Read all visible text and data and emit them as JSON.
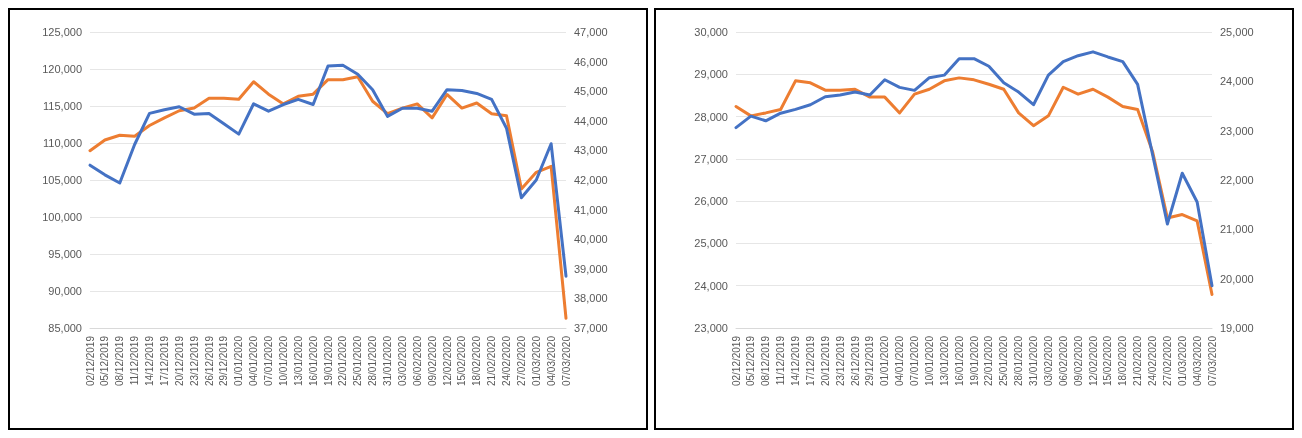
{
  "chart_data": [
    {
      "type": "line",
      "categories": [
        "02/12/2019",
        "05/12/2019",
        "08/12/2019",
        "11/12/2019",
        "14/12/2019",
        "17/12/2019",
        "20/12/2019",
        "23/12/2019",
        "26/12/2019",
        "29/12/2019",
        "01/01/2020",
        "04/01/2020",
        "07/01/2020",
        "10/01/2020",
        "13/01/2020",
        "16/01/2020",
        "19/01/2020",
        "22/01/2020",
        "25/01/2020",
        "28/01/2020",
        "31/01/2020",
        "03/02/2020",
        "06/02/2020",
        "09/02/2020",
        "12/02/2020",
        "15/02/2020",
        "18/02/2020",
        "21/02/2020",
        "24/02/2020",
        "27/02/2020",
        "01/03/2020",
        "04/03/2020",
        "07/03/2020"
      ],
      "series": [
        {
          "color": "#ed7d31",
          "axis": "y2",
          "values": [
            42990,
            43350,
            43510,
            43480,
            43840,
            44100,
            44340,
            44430,
            44760,
            44760,
            44730,
            45320,
            44900,
            44570,
            44830,
            44900,
            45390,
            45390,
            45490,
            44660,
            44240,
            44430,
            44570,
            44100,
            44890,
            44430,
            44600,
            44240,
            44170,
            41700,
            42260,
            42460,
            37330
          ]
        },
        {
          "color": "#4472c4",
          "values": [
            107000,
            105700,
            104600,
            109800,
            114000,
            114500,
            114900,
            113900,
            114000,
            112600,
            111200,
            115300,
            114300,
            115200,
            115900,
            115200,
            120400,
            120500,
            119300,
            117200,
            113600,
            114700,
            114700,
            114300,
            117200,
            117100,
            116700,
            115900,
            112000,
            102600,
            105000,
            109900,
            92000
          ]
        }
      ],
      "ylim": [
        85000,
        125000
      ],
      "yticks": [
        {
          "value": 85000,
          "label": "85,000"
        },
        {
          "value": 90000,
          "label": "90,000"
        },
        {
          "value": 95000,
          "label": "95,000"
        },
        {
          "value": 100000,
          "label": "100,000"
        },
        {
          "value": 105000,
          "label": "105,000"
        },
        {
          "value": 110000,
          "label": "110,000"
        },
        {
          "value": 115000,
          "label": "115,000"
        },
        {
          "value": 120000,
          "label": "120,000"
        },
        {
          "value": 125000,
          "label": "125,000"
        }
      ],
      "y2lim": [
        37000,
        47000
      ],
      "y2ticks": [
        {
          "value": 37000,
          "label": "37,000"
        },
        {
          "value": 38000,
          "label": "38,000"
        },
        {
          "value": 39000,
          "label": "39,000"
        },
        {
          "value": 40000,
          "label": "40,000"
        },
        {
          "value": 41000,
          "label": "41,000"
        },
        {
          "value": 42000,
          "label": "42,000"
        },
        {
          "value": 43000,
          "label": "43,000"
        },
        {
          "value": 44000,
          "label": "44,000"
        },
        {
          "value": 45000,
          "label": "45,000"
        },
        {
          "value": 46000,
          "label": "46,000"
        },
        {
          "value": 47000,
          "label": "47,000"
        }
      ],
      "grid": "y",
      "marker": "none"
    },
    {
      "type": "line",
      "categories": [
        "02/12/2019",
        "05/12/2019",
        "08/12/2019",
        "11/12/2019",
        "14/12/2019",
        "17/12/2019",
        "20/12/2019",
        "23/12/2019",
        "26/12/2019",
        "29/12/2019",
        "01/01/2020",
        "04/01/2020",
        "07/01/2020",
        "10/01/2020",
        "13/01/2020",
        "16/01/2020",
        "19/01/2020",
        "22/01/2020",
        "25/01/2020",
        "28/01/2020",
        "31/01/2020",
        "03/02/2020",
        "06/02/2020",
        "09/02/2020",
        "12/02/2020",
        "15/02/2020",
        "18/02/2020",
        "21/02/2020",
        "24/02/2020",
        "27/02/2020",
        "01/03/2020",
        "04/03/2020",
        "07/03/2020"
      ],
      "series": [
        {
          "color": "#ed7d31",
          "axis": "y2",
          "values": [
            23490,
            23300,
            23360,
            23430,
            24010,
            23970,
            23820,
            23820,
            23840,
            23680,
            23680,
            23360,
            23740,
            23840,
            24010,
            24070,
            24030,
            23940,
            23840,
            23360,
            23100,
            23300,
            23880,
            23740,
            23840,
            23680,
            23490,
            23430,
            22580,
            21230,
            21300,
            21170,
            19680
          ]
        },
        {
          "color": "#4472c4",
          "values": [
            27740,
            28010,
            27900,
            28080,
            28170,
            28280,
            28470,
            28510,
            28580,
            28510,
            28870,
            28690,
            28620,
            28920,
            28980,
            29370,
            29370,
            29190,
            28800,
            28580,
            28280,
            28980,
            29300,
            29440,
            29530,
            29410,
            29300,
            28760,
            27110,
            25460,
            26660,
            25980,
            24000
          ]
        }
      ],
      "ylim": [
        23000,
        30000
      ],
      "yticks": [
        {
          "value": 23000,
          "label": "23,000"
        },
        {
          "value": 24000,
          "label": "24,000"
        },
        {
          "value": 25000,
          "label": "25,000"
        },
        {
          "value": 26000,
          "label": "26,000"
        },
        {
          "value": 27000,
          "label": "27,000"
        },
        {
          "value": 28000,
          "label": "28,000"
        },
        {
          "value": 29000,
          "label": "29,000"
        },
        {
          "value": 30000,
          "label": "30,000"
        }
      ],
      "y2lim": [
        19000,
        25000
      ],
      "y2ticks": [
        {
          "value": 19000,
          "label": "19,000"
        },
        {
          "value": 20000,
          "label": "20,000"
        },
        {
          "value": 21000,
          "label": "21,000"
        },
        {
          "value": 22000,
          "label": "22,000"
        },
        {
          "value": 23000,
          "label": "23,000"
        },
        {
          "value": 24000,
          "label": "24,000"
        },
        {
          "value": 25000,
          "label": "25,000"
        }
      ],
      "grid": "y",
      "marker": "none"
    }
  ]
}
